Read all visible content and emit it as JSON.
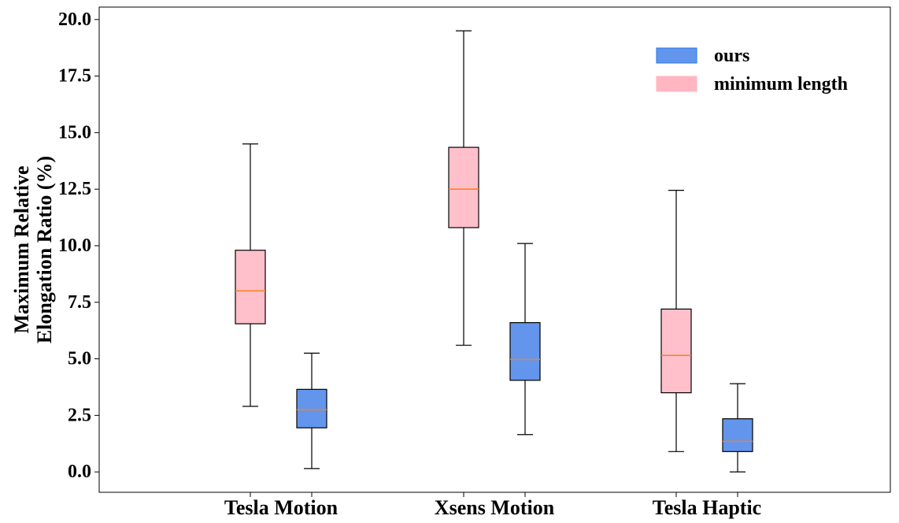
{
  "chart_data": {
    "type": "box",
    "ylabel_lines": [
      "Maximum Relative",
      "Elongation Ratio (%)"
    ],
    "xlabel": "",
    "ylim": [
      -0.9,
      20.55
    ],
    "yticks": [
      0.0,
      2.5,
      5.0,
      7.5,
      10.0,
      12.5,
      15.0,
      17.5,
      20.0
    ],
    "ytick_labels": [
      "0.0",
      "2.5",
      "5.0",
      "7.5",
      "10.0",
      "12.5",
      "15.0",
      "17.5",
      "20.0"
    ],
    "categories": [
      "Tesla Motion",
      "Xsens Motion",
      "Tesla Haptic"
    ],
    "legend": {
      "location": "top-right",
      "entries": [
        "ours",
        "minimum length"
      ]
    },
    "series": [
      {
        "name": "minimum length",
        "color": "#ffc0cb",
        "boxes": [
          {
            "whisker_low": 2.9,
            "q1": 6.55,
            "median": 8.0,
            "q3": 9.8,
            "whisker_high": 14.5
          },
          {
            "whisker_low": 5.6,
            "q1": 10.8,
            "median": 12.5,
            "q3": 14.35,
            "whisker_high": 19.5
          },
          {
            "whisker_low": 0.9,
            "q1": 3.5,
            "median": 5.15,
            "q3": 7.2,
            "whisker_high": 12.45
          }
        ]
      },
      {
        "name": "ours",
        "color": "#6495ed",
        "boxes": [
          {
            "whisker_low": 0.15,
            "q1": 1.95,
            "median": 2.75,
            "q3": 3.65,
            "whisker_high": 5.25
          },
          {
            "whisker_low": 1.65,
            "q1": 4.05,
            "median": 4.97,
            "q3": 6.6,
            "whisker_high": 10.1
          },
          {
            "whisker_low": 0.0,
            "q1": 0.9,
            "median": 1.35,
            "q3": 2.35,
            "whisker_high": 3.9
          }
        ]
      }
    ],
    "median_color": "#ff7f0e",
    "legend_ours_edge": "#1f77e4",
    "legend_min_color": "#ffb6c1"
  }
}
